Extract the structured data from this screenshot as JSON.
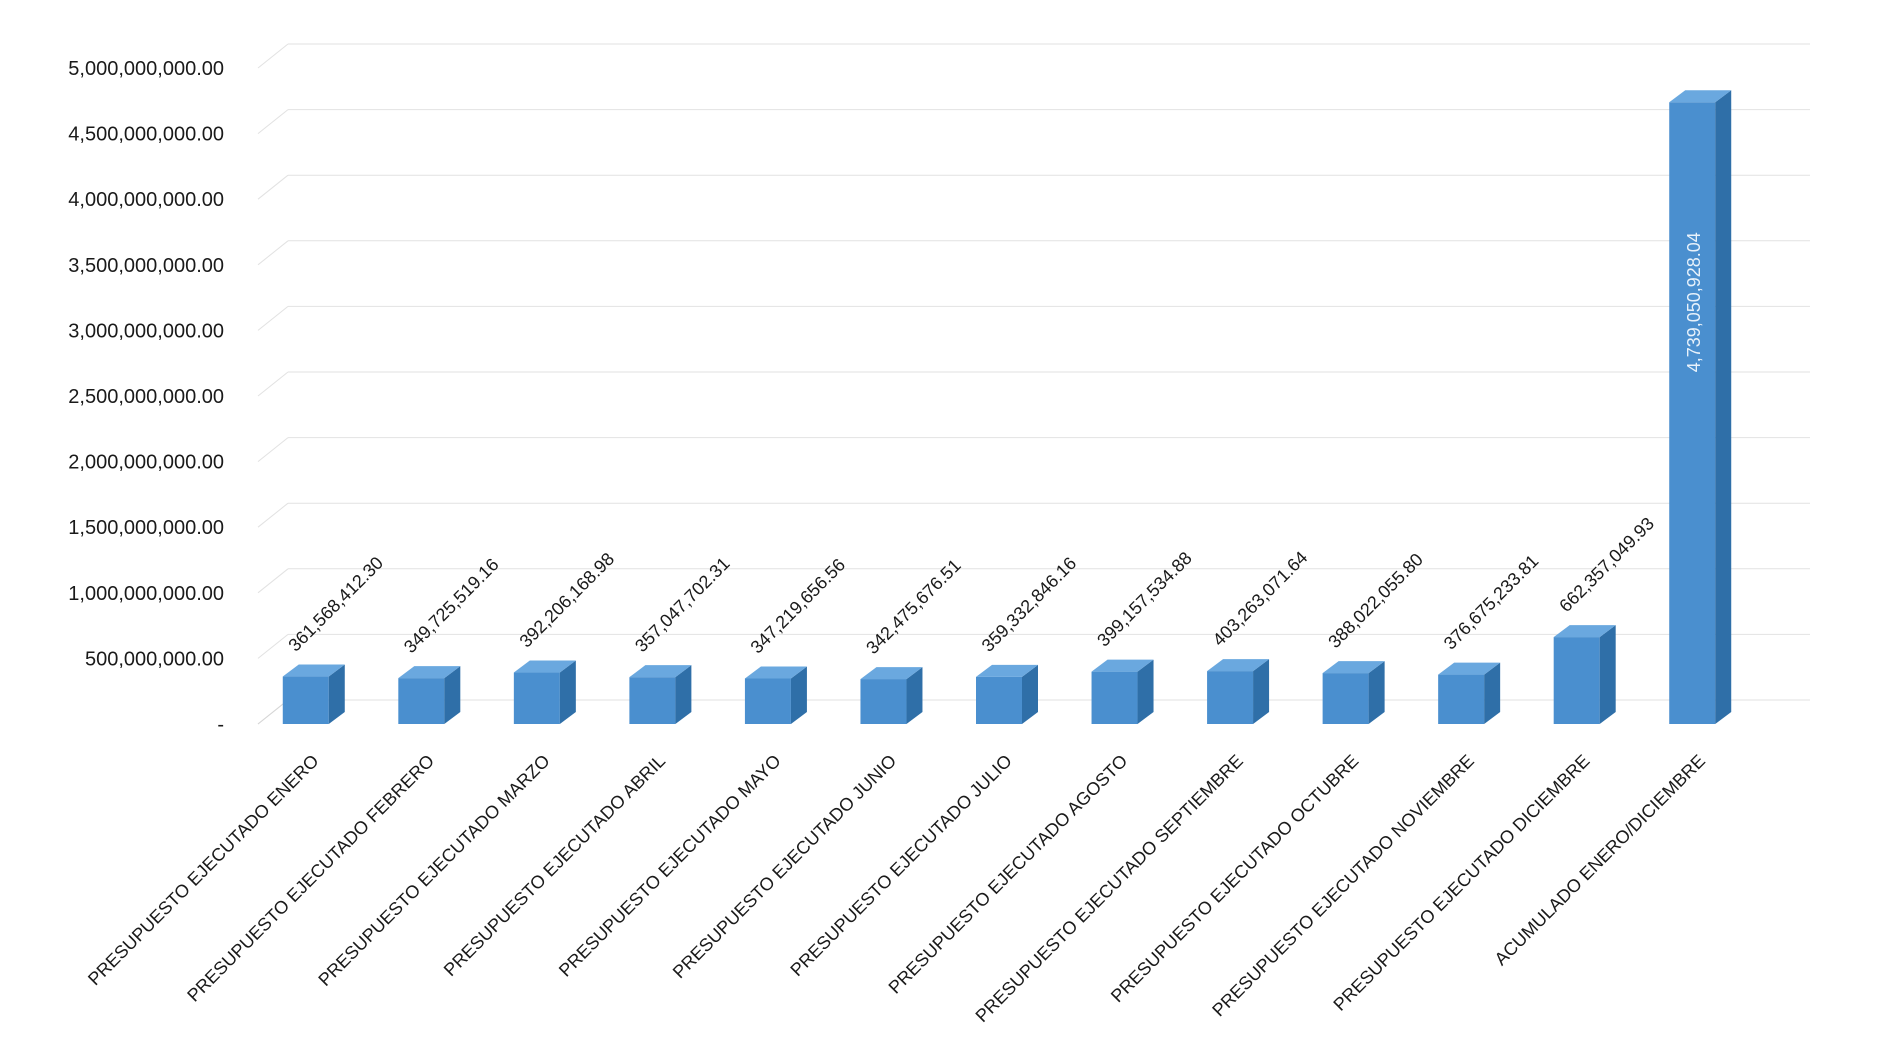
{
  "chart_data": {
    "type": "bar",
    "title": "",
    "xlabel": "",
    "ylabel": "",
    "ylim": [
      0,
      5000000000
    ],
    "yticks": [
      0,
      500000000,
      1000000000,
      1500000000,
      2000000000,
      2500000000,
      3000000000,
      3500000000,
      4000000000,
      4500000000,
      5000000000
    ],
    "ytick_labels": [
      "-",
      "500,000,000.00",
      "1,000,000,000.00",
      "1,500,000,000.00",
      "2,000,000,000.00",
      "2,500,000,000.00",
      "3,000,000,000.00",
      "3,500,000,000.00",
      "4,000,000,000.00",
      "4,500,000,000.00",
      "5,000,000,000.00"
    ],
    "grid": true,
    "legend": "none",
    "style": "3d-column",
    "bar_color": "#4a8fcf",
    "bar_side_color": "#2f6fa8",
    "bar_top_color": "#6aa8df",
    "categories": [
      "PRESUPUESTO EJECUTADO ENERO",
      "PRESUPUESTO EJECUTADO FEBRERO",
      "PRESUPUESTO EJECUTADO MARZO",
      "PRESUPUESTO EJECUTADO ABRIL",
      "PRESUPUESTO EJECUTADO MAYO",
      "PRESUPUESTO EJECUTADO JUNIO",
      "PRESUPUESTO EJECUTADO JULIO",
      "PRESUPUESTO EJECUTADO AGOSTO",
      "PRESUPUESTO EJECUTADO SEPTIEMBRE",
      "PRESUPUESTO EJECUTADO OCTUBRE",
      "PRESUPUESTO EJECUTADO NOVIEMBRE",
      "PRESUPUESTO EJECUTADO DICIEMBRE",
      "ACUMULADO ENERO/DICIEMBRE"
    ],
    "values": [
      361568412.3,
      349725519.16,
      392206168.98,
      357047702.31,
      347219656.56,
      342475676.51,
      359332846.16,
      399157534.88,
      403263071.64,
      388022055.8,
      376675233.81,
      662357049.93,
      4739050928.04
    ],
    "data_labels": [
      "361,568,412.30",
      "349,725,519.16",
      "392,206,168.98",
      "357,047,702.31",
      "347,219,656.56",
      "342,475,676.51",
      "359,332,846.16",
      "399,157,534.88",
      "403,263,071.64",
      "388,022,055.80",
      "376,675,233.81",
      "662,357,049.93",
      "4,739,050,928.04"
    ]
  }
}
